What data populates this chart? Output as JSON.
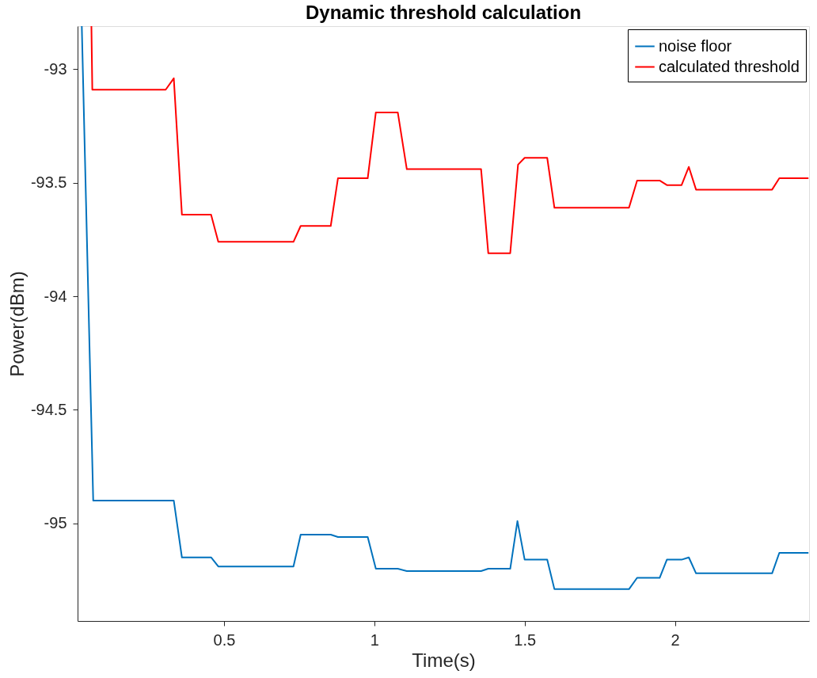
{
  "chart_data": {
    "type": "line",
    "title": "Dynamic threshold calculation",
    "xlabel": "Time(s)",
    "ylabel": "Power(dBm)",
    "xlim": [
      0.013,
      2.446
    ],
    "ylim": [
      -95.43,
      -92.81
    ],
    "xticks": [
      0.5,
      1,
      1.5,
      2
    ],
    "yticks": [
      -95,
      -94.5,
      -94,
      -93.5,
      -93
    ],
    "grid": false,
    "legend": "top right",
    "line_style": "solid",
    "marker": "none",
    "series": [
      {
        "name": "noise floor",
        "color": "#0072bd",
        "x": [
          0.027,
          0.065,
          0.306,
          0.333,
          0.36,
          0.457,
          0.481,
          0.731,
          0.755,
          0.855,
          0.879,
          0.978,
          1.005,
          1.078,
          1.108,
          1.355,
          1.379,
          1.452,
          1.476,
          1.5,
          1.575,
          1.599,
          1.847,
          1.874,
          1.949,
          1.973,
          2.022,
          2.046,
          2.07,
          2.323,
          2.347,
          2.444
        ],
        "values": [
          -92.81,
          -94.9,
          -94.9,
          -94.9,
          -95.15,
          -95.15,
          -95.19,
          -95.19,
          -95.05,
          -95.05,
          -95.06,
          -95.06,
          -95.2,
          -95.2,
          -95.21,
          -95.21,
          -95.2,
          -95.2,
          -94.99,
          -95.16,
          -95.16,
          -95.29,
          -95.29,
          -95.24,
          -95.24,
          -95.16,
          -95.16,
          -95.15,
          -95.22,
          -95.22,
          -95.13,
          -95.13
        ]
      },
      {
        "name": "calculated threshold",
        "color": "#ff0000",
        "x": [
          0.059,
          0.062,
          0.306,
          0.333,
          0.36,
          0.457,
          0.481,
          0.731,
          0.755,
          0.855,
          0.879,
          0.978,
          1.005,
          1.078,
          1.108,
          1.355,
          1.379,
          1.452,
          1.478,
          1.5,
          1.575,
          1.599,
          1.847,
          1.874,
          1.949,
          1.973,
          2.022,
          2.046,
          2.07,
          2.323,
          2.347,
          2.444
        ],
        "values": [
          -92.81,
          -93.09,
          -93.09,
          -93.04,
          -93.64,
          -93.64,
          -93.76,
          -93.76,
          -93.69,
          -93.69,
          -93.48,
          -93.48,
          -93.19,
          -93.19,
          -93.44,
          -93.44,
          -93.81,
          -93.81,
          -93.42,
          -93.39,
          -93.39,
          -93.61,
          -93.61,
          -93.49,
          -93.49,
          -93.51,
          -93.51,
          -93.43,
          -93.53,
          -93.53,
          -93.48,
          -93.48
        ]
      }
    ]
  }
}
